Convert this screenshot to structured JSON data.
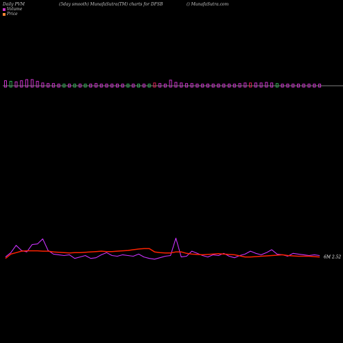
{
  "header": {
    "left": "Daily PVM",
    "middle": "(5day smooth) MunafaSutra(TM) charts for DFSB",
    "right": "() MunafaSutra.com"
  },
  "legend": {
    "volume": "Volume",
    "price": "Price"
  },
  "colors": {
    "background": "#000000",
    "volume_up": "#cc33cc",
    "volume_down": "#33aa55",
    "volume_red": "#dd2255",
    "pvm_line": "#cc33ff",
    "price_line": "#ff2200",
    "baseline": "#ffffff"
  },
  "chart_data": {
    "type": "line",
    "end_label": "6M 2.52",
    "volume": [
      9,
      8,
      7,
      9,
      11,
      11,
      8,
      5,
      4,
      4,
      3,
      3,
      3,
      3,
      3,
      3,
      3,
      4,
      3,
      3,
      3,
      3,
      3,
      3,
      3,
      3,
      3,
      3,
      5,
      4,
      3,
      10,
      6,
      5,
      4,
      4,
      3,
      3,
      3,
      3,
      3,
      3,
      3,
      3,
      4,
      5,
      5,
      5,
      5,
      6,
      5,
      4,
      3,
      3,
      3,
      3,
      3,
      3,
      3,
      3
    ],
    "volume_dir": [
      "u",
      "d",
      "u",
      "u",
      "u",
      "u",
      "u",
      "u",
      "u",
      "u",
      "u",
      "d",
      "u",
      "d",
      "u",
      "d",
      "u",
      "u",
      "u",
      "u",
      "u",
      "u",
      "u",
      "d",
      "u",
      "d",
      "u",
      "d",
      "r",
      "u",
      "u",
      "u",
      "u",
      "u",
      "u",
      "u",
      "u",
      "u",
      "u",
      "u",
      "u",
      "u",
      "u",
      "u",
      "u",
      "u",
      "r",
      "u",
      "u",
      "u",
      "u",
      "d",
      "u",
      "u",
      "u",
      "u",
      "u",
      "u",
      "u",
      "u"
    ],
    "pvm": [
      2.2,
      2.8,
      3.8,
      3.1,
      2.9,
      3.9,
      4.0,
      4.7,
      3.1,
      2.6,
      2.5,
      2.4,
      2.5,
      2.0,
      2.2,
      2.4,
      2.0,
      2.1,
      2.5,
      2.8,
      2.4,
      2.3,
      2.5,
      2.4,
      2.3,
      2.6,
      2.2,
      2.0,
      1.9,
      2.1,
      2.3,
      2.4,
      4.8,
      2.2,
      2.3,
      3.0,
      2.7,
      2.4,
      2.2,
      2.5,
      2.4,
      2.7,
      2.3,
      2.1,
      2.4,
      2.6,
      3.0,
      2.7,
      2.5,
      2.8,
      3.2,
      2.6,
      2.5,
      2.3,
      2.7,
      2.6,
      2.5,
      2.4,
      2.5,
      2.4
    ],
    "price": [
      2.0,
      2.6,
      2.8,
      3.0,
      3.05,
      3.05,
      3.05,
      3.0,
      3.0,
      2.9,
      2.85,
      2.8,
      2.75,
      2.8,
      2.8,
      2.85,
      2.9,
      2.95,
      3.0,
      2.95,
      2.95,
      3.0,
      3.05,
      3.1,
      3.2,
      3.3,
      3.35,
      3.35,
      2.9,
      2.8,
      2.75,
      2.75,
      2.9,
      2.9,
      2.7,
      2.6,
      2.55,
      2.5,
      2.55,
      2.6,
      2.65,
      2.6,
      2.55,
      2.5,
      2.35,
      2.2,
      2.2,
      2.25,
      2.3,
      2.35,
      2.4,
      2.45,
      2.5,
      2.4,
      2.35,
      2.3,
      2.3,
      2.3,
      2.25,
      2.2
    ]
  }
}
